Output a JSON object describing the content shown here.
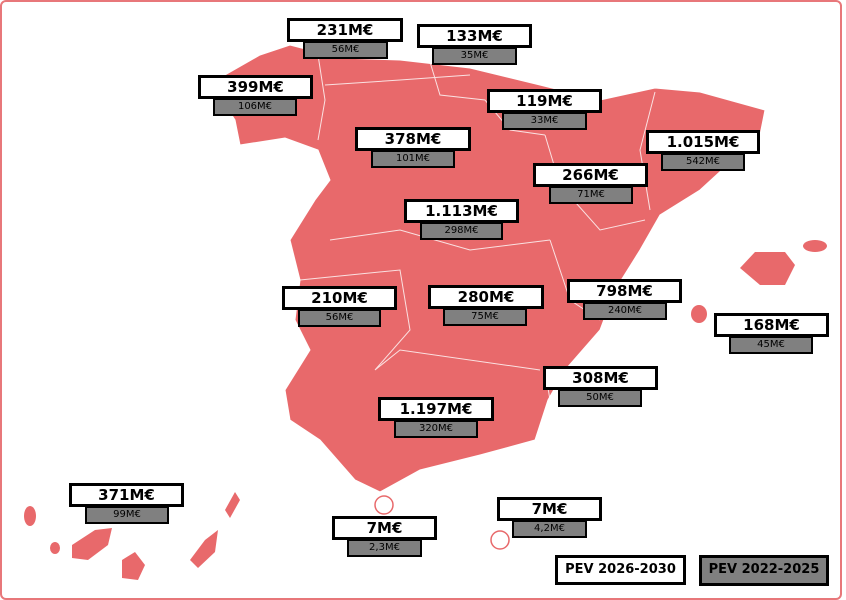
{
  "colors": {
    "map": "#e8696b",
    "pev_2026_2030": "#ffffff",
    "pev_2022_2025": "#808080"
  },
  "legend": {
    "pev_2026_2030": "PEV 2026-2030",
    "pev_2022_2025": "PEV 2022-2025"
  },
  "regions": [
    {
      "new": "231M€",
      "old": "56M€"
    },
    {
      "new": "133M€",
      "old": "35M€"
    },
    {
      "new": "399M€",
      "old": "106M€"
    },
    {
      "new": "119M€",
      "old": "33M€"
    },
    {
      "new": "378M€",
      "old": "101M€"
    },
    {
      "new": "1.015M€",
      "old": "542M€"
    },
    {
      "new": "266M€",
      "old": "71M€"
    },
    {
      "new": "1.113M€",
      "old": "298M€"
    },
    {
      "new": "210M€",
      "old": "56M€"
    },
    {
      "new": "280M€",
      "old": "75M€"
    },
    {
      "new": "798M€",
      "old": "240M€"
    },
    {
      "new": "168M€",
      "old": "45M€"
    },
    {
      "new": "308M€",
      "old": "50M€"
    },
    {
      "new": "1.197M€",
      "old": "320M€"
    },
    {
      "new": "371M€",
      "old": "99M€"
    },
    {
      "new": "7M€",
      "old": "2,3M€"
    },
    {
      "new": "7M€",
      "old": "4,2M€"
    }
  ]
}
